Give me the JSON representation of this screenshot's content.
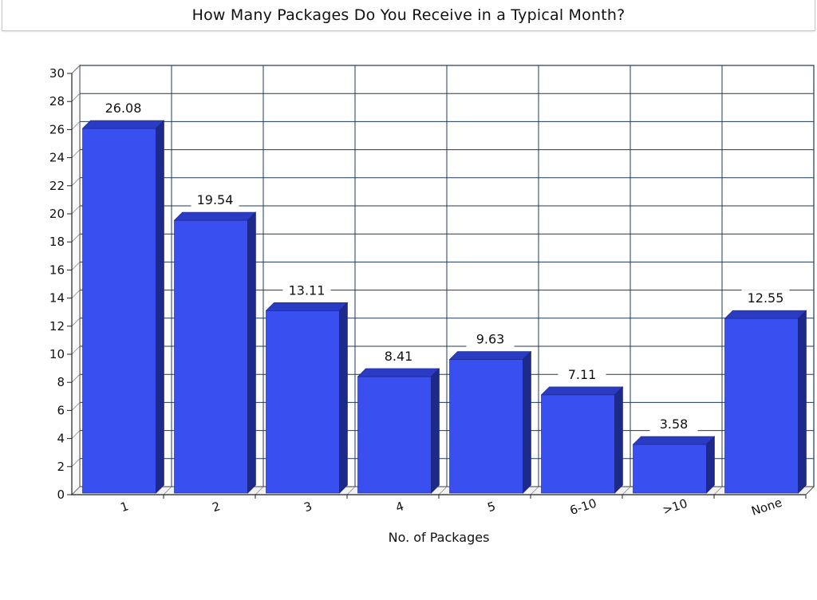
{
  "chart_data": {
    "type": "bar",
    "title": "How Many Packages Do You Receive in a Typical Month?",
    "xlabel": "No. of Packages",
    "ylabel": "",
    "categories": [
      "1",
      "2",
      "3",
      "4",
      "5",
      "6-10",
      ">10",
      "None"
    ],
    "values": [
      26.08,
      19.54,
      13.11,
      8.41,
      9.63,
      7.11,
      3.58,
      12.55
    ],
    "value_labels": [
      "26.08",
      "19.54",
      "13.11",
      "8.41",
      "9.63",
      "7.11",
      "3.58",
      "12.55"
    ],
    "ylim": [
      0,
      30
    ],
    "yticks": [
      "0",
      "2",
      "4",
      "6",
      "8",
      "10",
      "12",
      "14",
      "16",
      "18",
      "20",
      "22",
      "24",
      "26",
      "28",
      "30"
    ],
    "grid": true,
    "style": "3d",
    "colors": {
      "bar_front": "#3a4ff0",
      "bar_top": "#2b3cc4",
      "bar_side": "#1d2a8a",
      "grid": "#1f3a5a",
      "axis": "#222222"
    }
  }
}
